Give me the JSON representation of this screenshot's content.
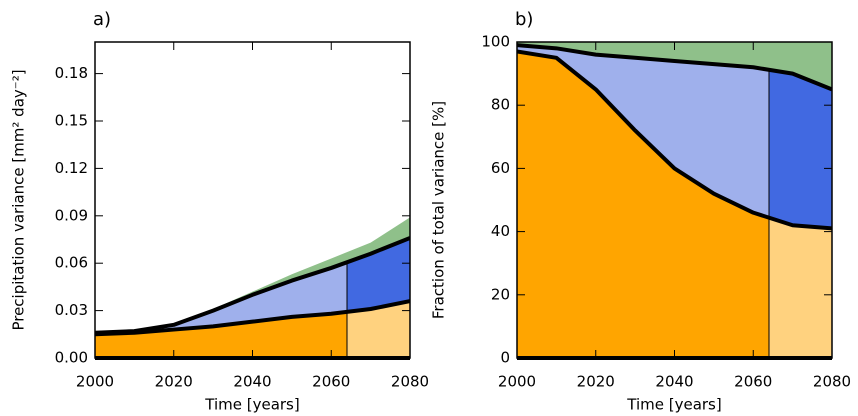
{
  "chart_data": [
    {
      "type": "stacked_area",
      "title": "a)",
      "x_label": "Time [years]",
      "y_label": "Precipitation variance [mm² day⁻²]",
      "x": [
        2000,
        2010,
        2020,
        2030,
        2040,
        2050,
        2060,
        2070,
        2080
      ],
      "split_x": 2064,
      "series": [
        {
          "color": "#ffa500",
          "color_after": "#ffd27f",
          "values": [
            0.015,
            0.016,
            0.018,
            0.02,
            0.023,
            0.026,
            0.028,
            0.031,
            0.036
          ]
        },
        {
          "color": "#9fb0ec",
          "color_after": "#4169e1",
          "values": [
            0.001,
            0.001,
            0.003,
            0.01,
            0.017,
            0.023,
            0.029,
            0.035,
            0.04
          ]
        },
        {
          "color": "#8fc08a",
          "color_after": "#8fc08a",
          "values": [
            0,
            0,
            0,
            0.001,
            0.002,
            0.004,
            0.006,
            0.007,
            0.013
          ]
        }
      ],
      "xlim": [
        2000,
        2080
      ],
      "xticks": [
        2000,
        2020,
        2040,
        2060,
        2080
      ],
      "ylim": [
        0,
        0.2
      ],
      "yticks": [
        {
          "value": 0,
          "label": "0.00"
        },
        {
          "value": 0.03,
          "label": "0.03"
        },
        {
          "value": 0.06,
          "label": "0.06"
        },
        {
          "value": 0.09,
          "label": "0.09"
        },
        {
          "value": 0.12,
          "label": "0.12"
        },
        {
          "value": 0.15,
          "label": "0.15"
        },
        {
          "value": 0.18,
          "label": "0.18"
        }
      ]
    },
    {
      "type": "stacked_area",
      "title": "b)",
      "x_label": "Time [years]",
      "y_label": "Fraction of total variance [%]",
      "x": [
        2000,
        2010,
        2020,
        2030,
        2040,
        2050,
        2060,
        2070,
        2080
      ],
      "split_x": 2064,
      "series": [
        {
          "color": "#ffa500",
          "color_after": "#ffd27f",
          "values": [
            97,
            95,
            85,
            72,
            60,
            52,
            46,
            42,
            41
          ]
        },
        {
          "color": "#9fb0ec",
          "color_after": "#4169e1",
          "values": [
            2,
            3,
            11,
            23,
            34,
            41,
            46,
            48,
            44
          ]
        },
        {
          "color": "#8fc08a",
          "color_after": "#8fc08a",
          "values": [
            1,
            2,
            4,
            5,
            6,
            7,
            8,
            10,
            15
          ]
        }
      ],
      "xlim": [
        2000,
        2080
      ],
      "xticks": [
        2000,
        2020,
        2040,
        2060,
        2080
      ],
      "ylim": [
        0,
        100
      ],
      "yticks": [
        0,
        20,
        40,
        60,
        80,
        100
      ]
    }
  ]
}
